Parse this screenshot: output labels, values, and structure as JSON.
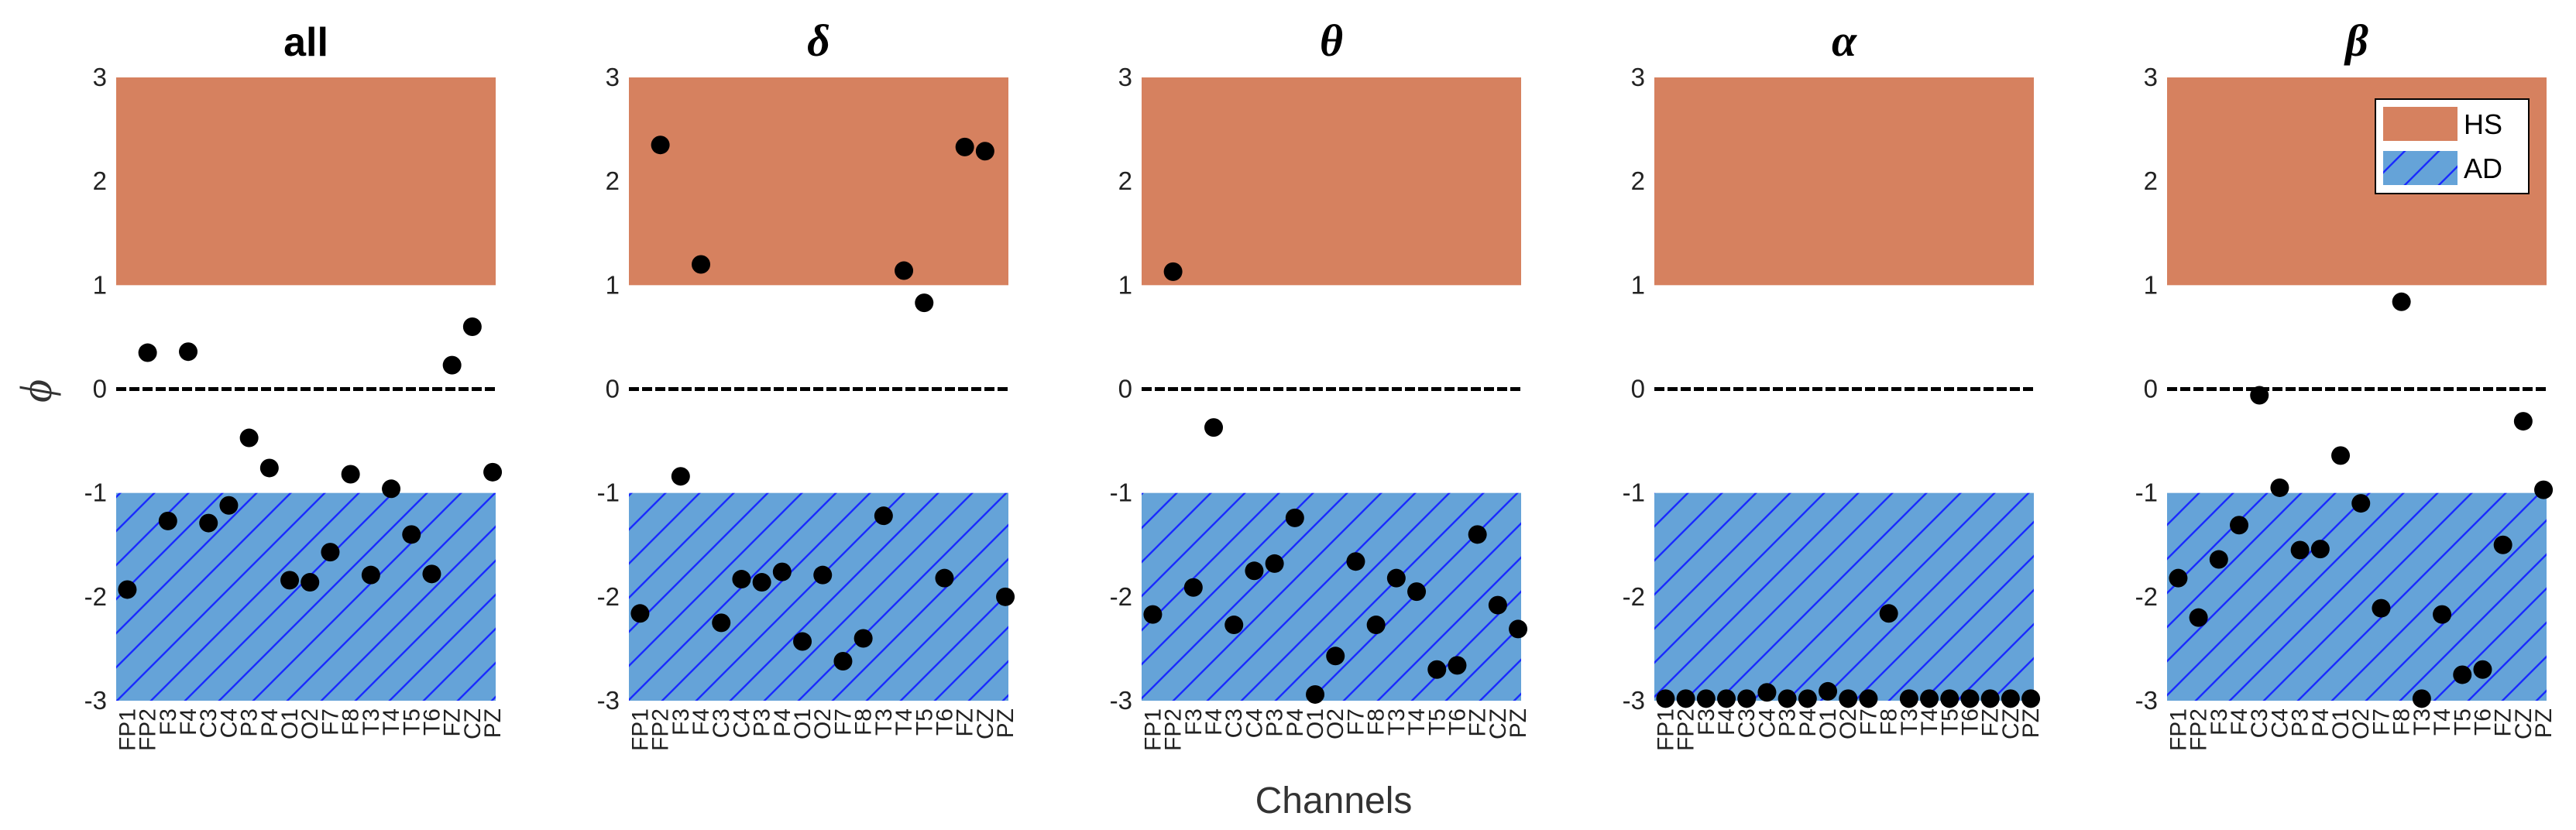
{
  "figure": {
    "xlabel": "Channels",
    "ylabel": "ϕ",
    "colors": {
      "hs_fill": "#d6815f",
      "ad_fill": "#65a3d8",
      "ad_hatch": "#1a2bff",
      "points": "#000000",
      "zero_line": "#000000"
    },
    "legend": {
      "location": "top-right of last panel",
      "items": [
        {
          "label": "HS",
          "style": "solid",
          "color": "#d6815f"
        },
        {
          "label": "AD",
          "style": "hatched",
          "color": "#65a3d8"
        }
      ]
    }
  },
  "chart_data": [
    {
      "type": "scatter",
      "title": "all",
      "title_style": "sans-bold",
      "ylim": [
        -3,
        3
      ],
      "yticks": [
        -3,
        -2,
        -1,
        0,
        1,
        2,
        3
      ],
      "bands": [
        {
          "label": "HS",
          "range": [
            1,
            3
          ]
        },
        {
          "label": "AD",
          "range": [
            -3,
            -1
          ]
        }
      ],
      "zero_line": true,
      "categories": [
        "FP1",
        "FP2",
        "F3",
        "F4",
        "C3",
        "C4",
        "P3",
        "P4",
        "O1",
        "O2",
        "F7",
        "F8",
        "T3",
        "T4",
        "T5",
        "T6",
        "FZ",
        "CZ",
        "PZ"
      ],
      "values": [
        -1.93,
        0.35,
        -1.27,
        0.36,
        -1.29,
        -1.12,
        -0.47,
        -0.76,
        -1.84,
        -1.86,
        -1.57,
        -0.82,
        -1.79,
        -0.96,
        -1.4,
        -1.78,
        0.23,
        0.6,
        -0.8
      ]
    },
    {
      "type": "scatter",
      "title": "δ",
      "title_style": "serif-bold-italic",
      "ylim": [
        -3,
        3
      ],
      "yticks": [
        -3,
        -2,
        -1,
        0,
        1,
        2,
        3
      ],
      "bands": [
        {
          "label": "HS",
          "range": [
            1,
            3
          ]
        },
        {
          "label": "AD",
          "range": [
            -3,
            -1
          ]
        }
      ],
      "zero_line": true,
      "categories": [
        "FP1",
        "FP2",
        "F3",
        "F4",
        "C3",
        "C4",
        "P3",
        "P4",
        "O1",
        "O2",
        "F7",
        "F8",
        "T3",
        "T4",
        "T5",
        "T6",
        "FZ",
        "CZ",
        "PZ"
      ],
      "values": [
        -2.16,
        2.35,
        -0.84,
        1.2,
        -2.25,
        -1.83,
        -1.86,
        -1.76,
        -2.43,
        -1.79,
        -2.62,
        -2.4,
        -1.22,
        1.14,
        0.83,
        -1.82,
        2.33,
        2.29,
        -2.0
      ]
    },
    {
      "type": "scatter",
      "title": "θ",
      "title_style": "serif-bold-italic",
      "ylim": [
        -3,
        3
      ],
      "yticks": [
        -3,
        -2,
        -1,
        0,
        1,
        2,
        3
      ],
      "bands": [
        {
          "label": "HS",
          "range": [
            1,
            3
          ]
        },
        {
          "label": "AD",
          "range": [
            -3,
            -1
          ]
        }
      ],
      "zero_line": true,
      "categories": [
        "FP1",
        "FP2",
        "F3",
        "F4",
        "C3",
        "C4",
        "P3",
        "P4",
        "O1",
        "O2",
        "F7",
        "F8",
        "T3",
        "T4",
        "T5",
        "T6",
        "FZ",
        "CZ",
        "PZ"
      ],
      "values": [
        -2.17,
        1.13,
        -1.91,
        -0.37,
        -2.27,
        -1.75,
        -1.68,
        -1.24,
        -2.94,
        -2.57,
        -1.66,
        -2.27,
        -1.82,
        -1.95,
        -2.7,
        -2.66,
        -1.4,
        -2.08,
        -2.31
      ]
    },
    {
      "type": "scatter",
      "title": "α",
      "title_style": "serif-bold-italic",
      "ylim": [
        -3,
        3
      ],
      "yticks": [
        -3,
        -2,
        -1,
        0,
        1,
        2,
        3
      ],
      "bands": [
        {
          "label": "HS",
          "range": [
            1,
            3
          ]
        },
        {
          "label": "AD",
          "range": [
            -3,
            -1
          ]
        }
      ],
      "zero_line": true,
      "categories": [
        "FP1",
        "FP2",
        "F3",
        "F4",
        "C3",
        "C4",
        "P3",
        "P4",
        "O1",
        "O2",
        "F7",
        "F8",
        "T3",
        "T4",
        "T5",
        "T6",
        "FZ",
        "CZ",
        "PZ"
      ],
      "values": [
        -2.98,
        -2.98,
        -2.98,
        -2.98,
        -2.98,
        -2.92,
        -2.98,
        -2.98,
        -2.91,
        -2.98,
        -2.98,
        -2.16,
        -2.98,
        -2.98,
        -2.98,
        -2.98,
        -2.98,
        -2.98,
        -2.98
      ]
    },
    {
      "type": "scatter",
      "title": "β",
      "title_style": "serif-bold-italic",
      "ylim": [
        -3,
        3
      ],
      "yticks": [
        -3,
        -2,
        -1,
        0,
        1,
        2,
        3
      ],
      "bands": [
        {
          "label": "HS",
          "range": [
            1,
            3
          ]
        },
        {
          "label": "AD",
          "range": [
            -3,
            -1
          ]
        }
      ],
      "zero_line": true,
      "legend": true,
      "categories": [
        "FP1",
        "FP2",
        "F3",
        "F4",
        "C3",
        "C4",
        "P3",
        "P4",
        "O1",
        "O2",
        "F7",
        "F8",
        "T3",
        "T4",
        "T5",
        "T6",
        "FZ",
        "CZ",
        "PZ"
      ],
      "values": [
        -1.82,
        -2.2,
        -1.64,
        -1.31,
        -0.06,
        -0.95,
        -1.55,
        -1.54,
        -0.64,
        -1.1,
        -2.11,
        0.84,
        -2.98,
        -2.17,
        -2.75,
        -2.7,
        -1.5,
        -0.31,
        -0.97
      ]
    }
  ]
}
